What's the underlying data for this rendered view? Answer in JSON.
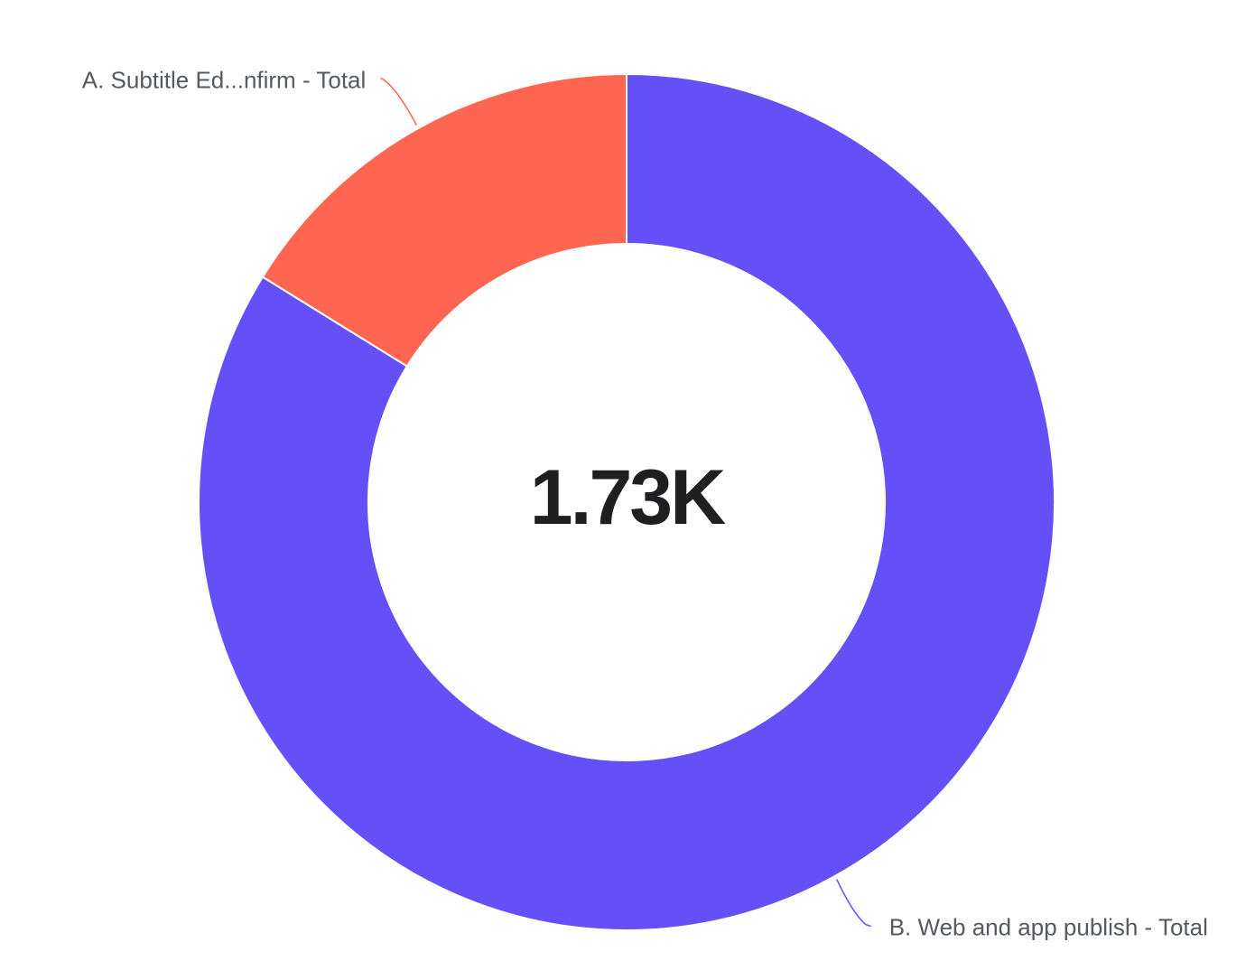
{
  "chart_data": {
    "type": "pie",
    "variant": "donut",
    "center_label": "1.73K",
    "slices": [
      {
        "label": "A. Subtitle Ed...nfirm - Total",
        "value": 280,
        "color": "#FF6651"
      },
      {
        "label": "B. Web and app publish - Total",
        "value": 1450,
        "color": "#6550F7"
      }
    ],
    "start_angle_deg": 0,
    "direction": "counterclockwise-from-top-for-A",
    "legend": "none",
    "label_placement": "outside-with-leader-lines"
  }
}
